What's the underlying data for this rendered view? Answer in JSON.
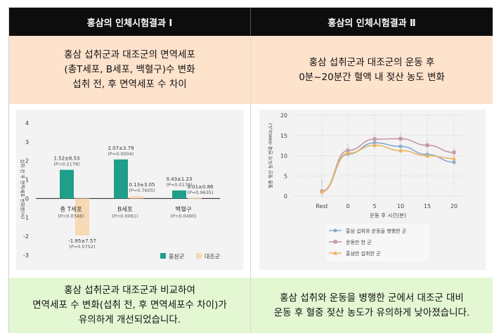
{
  "header": {
    "left_title": "홍삼의 인체시험결과 Ⅰ",
    "right_title": "홍삼의 인체시험결과 Ⅱ"
  },
  "subtitle": {
    "left_lines": [
      "홍삼 섭취군과 대조군의 면역세포",
      "(총T세포, B세포, 백혈구)수 변화",
      "섭취 전, 후 면역세포 수 차이"
    ],
    "right_lines": [
      "홍삼 섭취군과 대조군의 운동 후",
      "0분~20분간 혈액 내 젖산 농도 변화"
    ]
  },
  "conclusion": {
    "left_lines": [
      "홍삼 섭취군과 대조군과 비교하여",
      "면역세포 수 변화(섭취 전, 후 면역세포수 차이)가",
      "유의하게 개선되었습니다."
    ],
    "right_lines": [
      "홍삼 섭취와 운동을 병행한 군에서 대조군 대비",
      "운동 후 혈중 젖산 농도가 유의하게 낮아졌습니다."
    ]
  },
  "colors": {
    "ginseng": "#1f9e89",
    "control": "#f7d9b5",
    "line_both": "#88a9d0",
    "line_exercise": "#c497a4",
    "line_ginseng": "#eab463"
  },
  "chart_data": [
    {
      "type": "bar",
      "title": "",
      "ylabel": "섭취 전 후 면역세포 변화량(%)",
      "ylim": [
        -3,
        4
      ],
      "yticks": [
        "4",
        "3",
        "2",
        "1",
        "0",
        "-1",
        "-2",
        "-3"
      ],
      "categories": [
        "총 T세포",
        "B세포",
        "백혈구"
      ],
      "category_p": [
        "(P=0.0348)",
        "(P=0.0061)",
        "(P=0.0490)"
      ],
      "series": [
        {
          "name": "홍삼군",
          "values": [
            1.52,
            2.07,
            0.43
          ],
          "labels": [
            "1.52±8.53",
            "2.07±3.79",
            "0.43±1.23"
          ],
          "p_labels": [
            "(P=0.2178)",
            "(P=0.0004)",
            "(P=0.0179)"
          ]
        },
        {
          "name": "대조군",
          "values": [
            -1.95,
            0.13,
            0.01
          ],
          "labels": [
            "-1.95±7.57",
            "0.13±3.05",
            "0.01±0.86"
          ],
          "p_labels": [
            "(P=0.0752)",
            "(P=0.7605)",
            "(P=0.9635)"
          ]
        }
      ],
      "legend": "bottom-right",
      "grid": false
    },
    {
      "type": "line",
      "ylabel": "혈중 젖산 농도의 변화 (MMOL/L)",
      "xlabel": "운동 후 시간(분)",
      "ylim": [
        0,
        20
      ],
      "yticks": [
        "20",
        "15",
        "10",
        "5",
        "0"
      ],
      "x": [
        "Rest",
        "0",
        "5",
        "10",
        "15",
        "20"
      ],
      "series": [
        {
          "name": "홍삼 섭취와 운동을 병행한 군",
          "values": [
            1.1,
            10.4,
            13.2,
            12.3,
            10.3,
            8.4
          ]
        },
        {
          "name": "운동만 한 군",
          "values": [
            1.2,
            11.3,
            14.1,
            14.2,
            12.6,
            10.8
          ]
        },
        {
          "name": "홍삼만 섭취한 군",
          "values": [
            1.1,
            10.6,
            12.6,
            11.3,
            10.0,
            9.3
          ]
        }
      ],
      "legend": "bottom-center",
      "grid": true
    }
  ]
}
